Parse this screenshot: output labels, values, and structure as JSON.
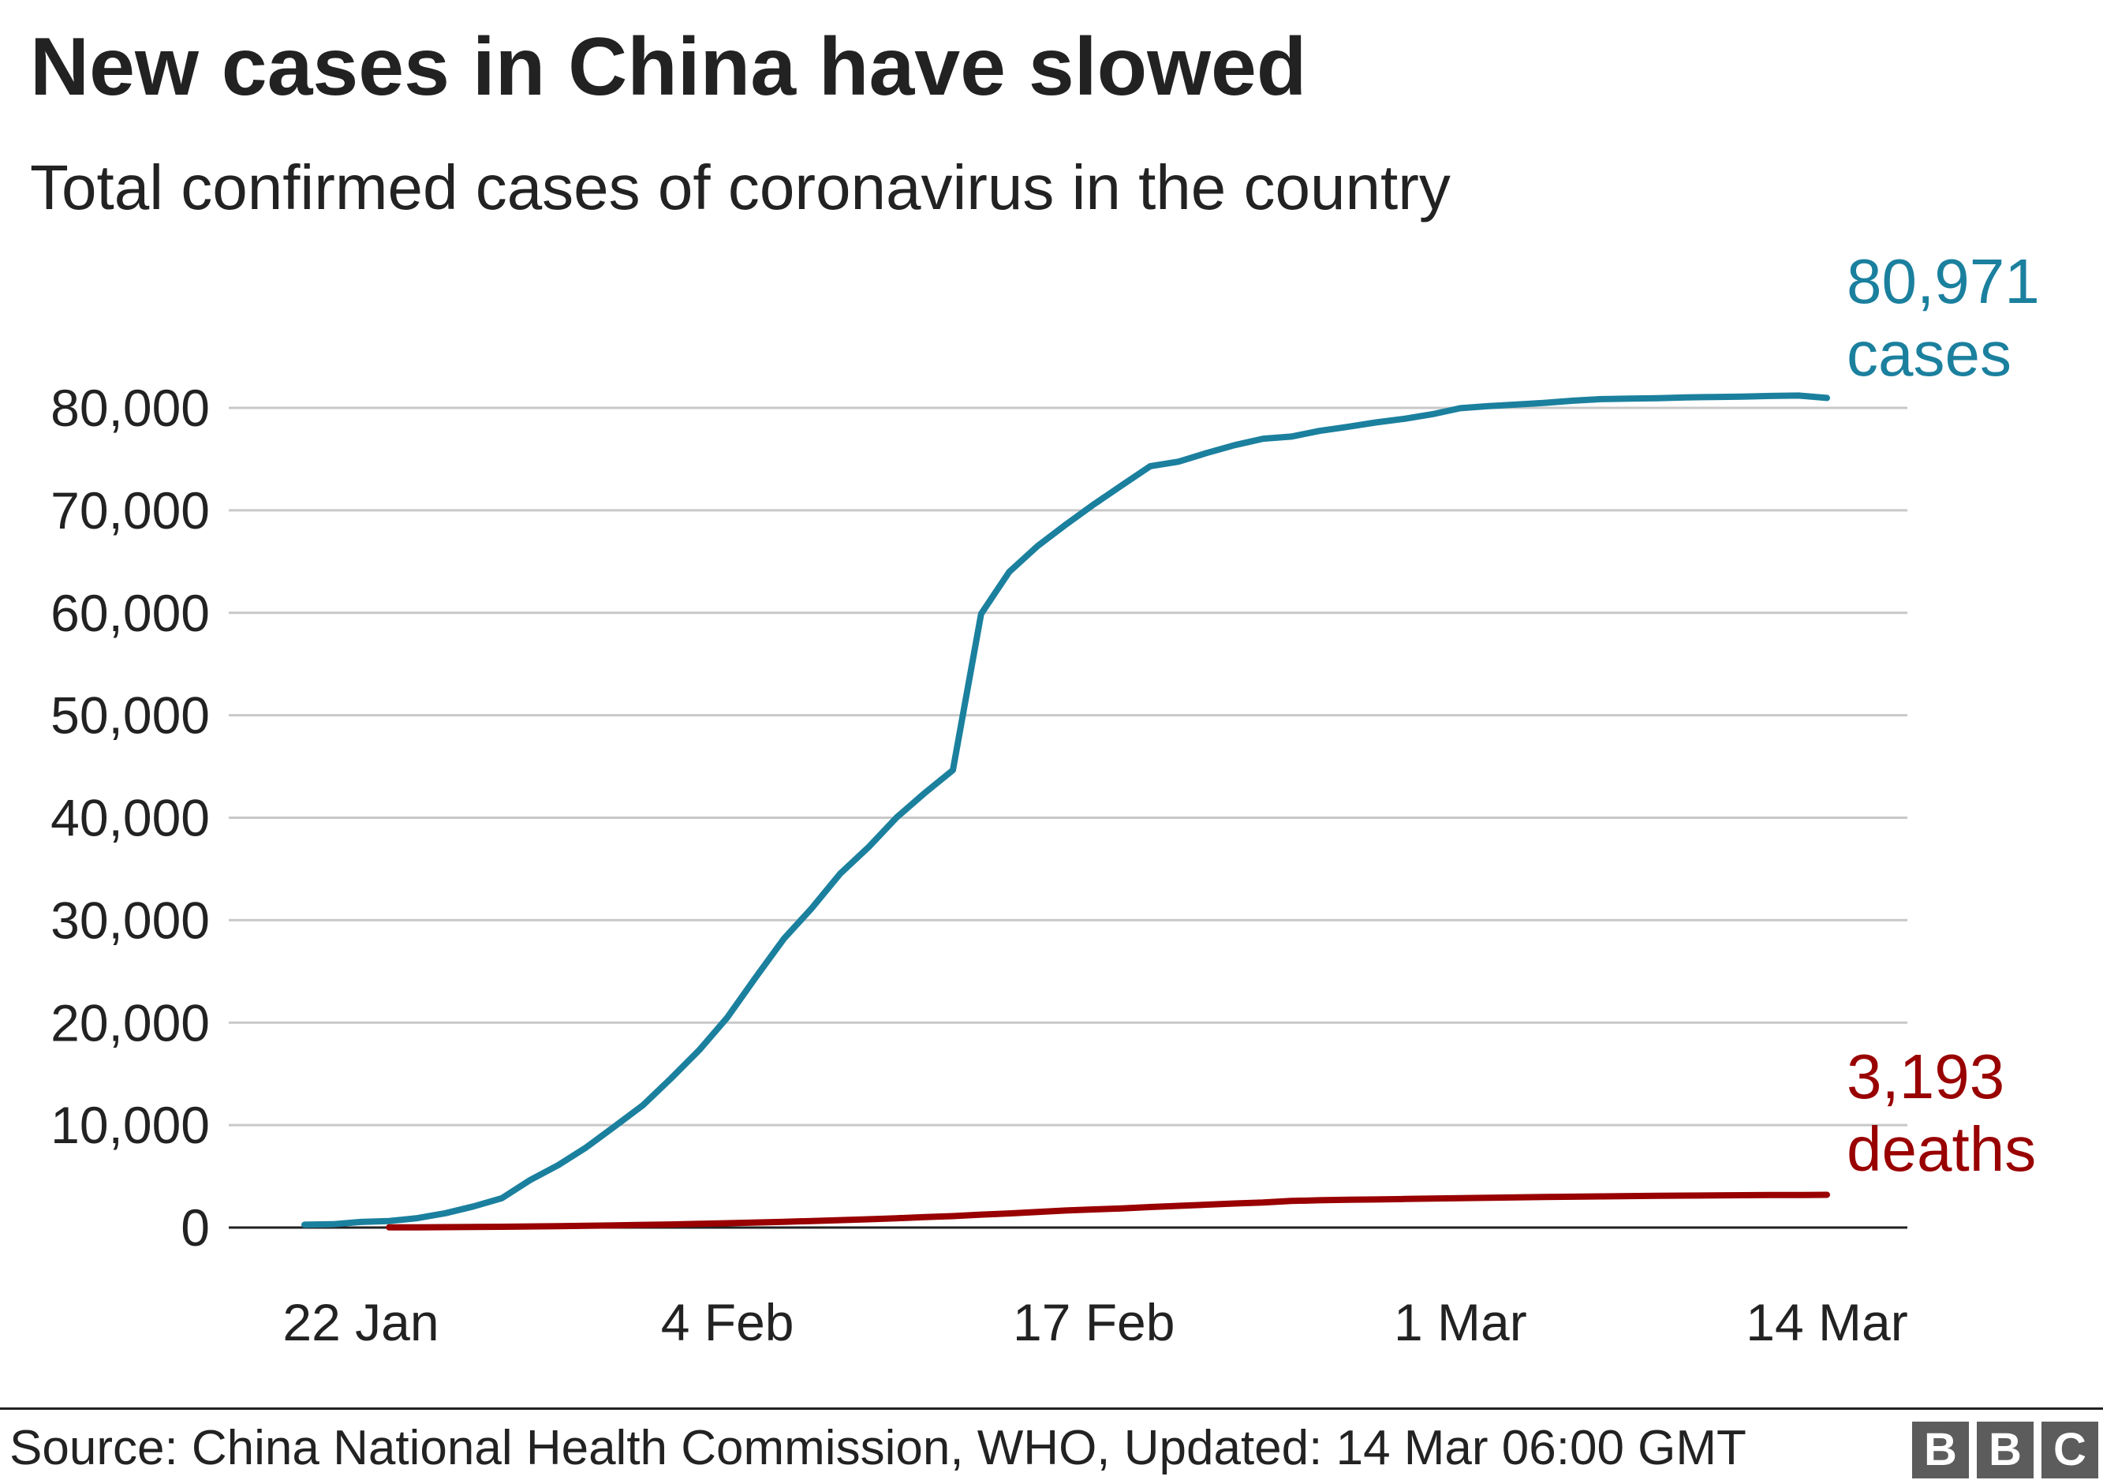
{
  "header": {
    "title": "New cases in China have slowed",
    "subtitle": "Total confirmed cases of coronavirus in the country"
  },
  "footer": {
    "source": "Source: China National Health Commission, WHO, Updated: 14 Mar 06:00 GMT",
    "logo_letters": [
      "B",
      "B",
      "C"
    ]
  },
  "chart_data": {
    "type": "line",
    "title": "New cases in China have slowed",
    "subtitle": "Total confirmed cases of coronavirus in the country",
    "xlabel": "",
    "ylabel": "",
    "x_tick_labels": [
      "22 Jan",
      "4 Feb",
      "17 Feb",
      "1 Mar",
      "14 Mar"
    ],
    "y_ticks": [
      0,
      10000,
      20000,
      30000,
      40000,
      50000,
      60000,
      70000,
      80000
    ],
    "y_tick_labels": [
      "0",
      "10,000",
      "20,000",
      "30,000",
      "40,000",
      "50,000",
      "60,000",
      "70,000",
      "80,000"
    ],
    "ylim": [
      0,
      80000
    ],
    "grid": true,
    "series": [
      {
        "name": "cases",
        "color": "#1b809e",
        "end_value_label": "80,971",
        "end_unit_label": "cases",
        "x": [
          "20 Jan",
          "21 Jan",
          "22 Jan",
          "23 Jan",
          "24 Jan",
          "25 Jan",
          "26 Jan",
          "27 Jan",
          "28 Jan",
          "29 Jan",
          "30 Jan",
          "31 Jan",
          "1 Feb",
          "2 Feb",
          "3 Feb",
          "4 Feb",
          "5 Feb",
          "6 Feb",
          "7 Feb",
          "8 Feb",
          "9 Feb",
          "10 Feb",
          "11 Feb",
          "12 Feb",
          "13 Feb",
          "14 Feb",
          "15 Feb",
          "16 Feb",
          "17 Feb",
          "18 Feb",
          "19 Feb",
          "20 Feb",
          "21 Feb",
          "22 Feb",
          "23 Feb",
          "24 Feb",
          "25 Feb",
          "26 Feb",
          "27 Feb",
          "28 Feb",
          "29 Feb",
          "1 Mar",
          "2 Mar",
          "3 Mar",
          "4 Mar",
          "5 Mar",
          "6 Mar",
          "7 Mar",
          "8 Mar",
          "9 Mar",
          "10 Mar",
          "11 Mar",
          "12 Mar",
          "13 Mar",
          "14 Mar"
        ],
        "values": [
          278,
          326,
          547,
          639,
          916,
          1399,
          2062,
          2863,
          4630,
          6087,
          7839,
          9867,
          11927,
          14555,
          17318,
          20509,
          24403,
          28177,
          31190,
          34543,
          37103,
          40024,
          42412,
          44640,
          59895,
          64003,
          66508,
          68594,
          70581,
          72460,
          74308,
          74751,
          75595,
          76369,
          76988,
          77201,
          77754,
          78147,
          78572,
          78927,
          79373,
          79968,
          80174,
          80324,
          80494,
          80700,
          80852,
          80899,
          80946,
          81015,
          81060,
          81104,
          81163,
          81202,
          80971
        ]
      },
      {
        "name": "deaths",
        "color": "#990000",
        "end_value_label": "3,193",
        "end_unit_label": "deaths",
        "x": [
          "23 Jan",
          "24 Jan",
          "25 Jan",
          "26 Jan",
          "27 Jan",
          "28 Jan",
          "29 Jan",
          "30 Jan",
          "31 Jan",
          "1 Feb",
          "2 Feb",
          "3 Feb",
          "4 Feb",
          "5 Feb",
          "6 Feb",
          "7 Feb",
          "8 Feb",
          "9 Feb",
          "10 Feb",
          "11 Feb",
          "12 Feb",
          "13 Feb",
          "14 Feb",
          "15 Feb",
          "16 Feb",
          "17 Feb",
          "18 Feb",
          "19 Feb",
          "20 Feb",
          "21 Feb",
          "22 Feb",
          "23 Feb",
          "24 Feb",
          "25 Feb",
          "26 Feb",
          "27 Feb",
          "28 Feb",
          "29 Feb",
          "1 Mar",
          "2 Mar",
          "3 Mar",
          "4 Mar",
          "5 Mar",
          "6 Mar",
          "7 Mar",
          "8 Mar",
          "9 Mar",
          "10 Mar",
          "11 Mar",
          "12 Mar",
          "13 Mar",
          "14 Mar"
        ],
        "values": [
          17,
          25,
          41,
          56,
          80,
          106,
          132,
          170,
          213,
          259,
          304,
          361,
          425,
          490,
          563,
          636,
          722,
          811,
          908,
          1016,
          1113,
          1259,
          1380,
          1523,
          1665,
          1770,
          1868,
          2004,
          2118,
          2236,
          2345,
          2442,
          2592,
          2663,
          2715,
          2744,
          2788,
          2835,
          2870,
          2912,
          2943,
          2981,
          3012,
          3042,
          3070,
          3097,
          3119,
          3136,
          3158,
          3169,
          3176,
          3193
        ]
      }
    ]
  }
}
